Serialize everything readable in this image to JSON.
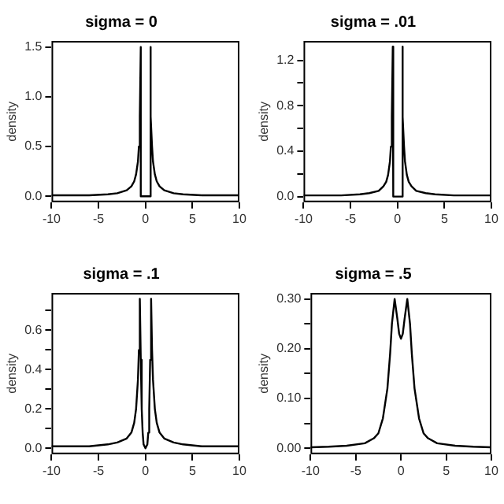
{
  "chart_data": [
    {
      "type": "line",
      "title": "sigma = 0",
      "ylabel": "density",
      "grid": false,
      "legend": false,
      "marker": "none",
      "line_style": "solid",
      "xlim": [
        -10,
        10
      ],
      "xticks": [
        -10,
        -5,
        0,
        5,
        10
      ],
      "ylim": [
        -0.06,
        1.56
      ],
      "yticks": [
        {
          "value": 0,
          "label": "0.0"
        },
        {
          "value": 0.5,
          "label": "0.5"
        },
        {
          "value": 1,
          "label": "1.0"
        },
        {
          "value": 1.5,
          "label": "1.5"
        }
      ],
      "x": [
        -10,
        -6,
        -4,
        -3,
        -2,
        -1.5,
        -1.2,
        -1,
        -0.8,
        -0.7,
        -0.6,
        -0.5,
        -0.5,
        0.5,
        0.5,
        0.6,
        0.7,
        0.8,
        1,
        1.2,
        1.5,
        2,
        3,
        4,
        6,
        10
      ],
      "series": [
        {
          "color": "#000000",
          "values": [
            0.01,
            0.01,
            0.02,
            0.03,
            0.06,
            0.1,
            0.15,
            0.22,
            0.35,
            0.5,
            0.8,
            1.5,
            0,
            0,
            1.5,
            0.8,
            0.5,
            0.35,
            0.22,
            0.15,
            0.1,
            0.06,
            0.03,
            0.02,
            0.01,
            0.01
          ]
        }
      ]
    },
    {
      "type": "line",
      "title": "sigma = .01",
      "ylabel": "density",
      "grid": false,
      "legend": false,
      "marker": "none",
      "line_style": "solid",
      "xlim": [
        -10,
        10
      ],
      "xticks": [
        -10,
        -5,
        0,
        5,
        10
      ],
      "ylim": [
        -0.05,
        1.37
      ],
      "yticks": [
        {
          "value": 0,
          "label": "0.0"
        },
        {
          "value": 0.2,
          "label": null
        },
        {
          "value": 0.4,
          "label": "0.4"
        },
        {
          "value": 0.6,
          "label": null
        },
        {
          "value": 0.8,
          "label": "0.8"
        },
        {
          "value": 1,
          "label": null
        },
        {
          "value": 1.2,
          "label": "1.2"
        }
      ],
      "x": [
        -10,
        -6,
        -4,
        -3,
        -2,
        -1.5,
        -1.2,
        -1,
        -0.8,
        -0.7,
        -0.6,
        -0.5,
        -0.45,
        0.45,
        0.5,
        0.6,
        0.7,
        0.8,
        1,
        1.2,
        1.5,
        2,
        3,
        4,
        6,
        10
      ],
      "series": [
        {
          "color": "#000000",
          "values": [
            0.01,
            0.01,
            0.02,
            0.03,
            0.05,
            0.09,
            0.13,
            0.19,
            0.31,
            0.44,
            0.7,
            1.32,
            0,
            0,
            1.32,
            0.7,
            0.44,
            0.31,
            0.19,
            0.13,
            0.09,
            0.05,
            0.03,
            0.02,
            0.01,
            0.01
          ]
        }
      ]
    },
    {
      "type": "line",
      "title": "sigma = .1",
      "ylabel": "density",
      "grid": false,
      "legend": false,
      "marker": "none",
      "line_style": "solid",
      "xlim": [
        -10,
        10
      ],
      "xticks": [
        -10,
        -5,
        0,
        5,
        10
      ],
      "ylim": [
        -0.03,
        0.79
      ],
      "yticks": [
        {
          "value": 0,
          "label": "0.0"
        },
        {
          "value": 0.1,
          "label": null
        },
        {
          "value": 0.2,
          "label": "0.2"
        },
        {
          "value": 0.3,
          "label": null
        },
        {
          "value": 0.4,
          "label": "0.4"
        },
        {
          "value": 0.5,
          "label": null
        },
        {
          "value": 0.6,
          "label": "0.6"
        },
        {
          "value": 0.7,
          "label": null
        }
      ],
      "x": [
        -10,
        -8,
        -6,
        -4,
        -3,
        -2,
        -1.5,
        -1.2,
        -1,
        -0.8,
        -0.7,
        -0.6,
        -0.5,
        -0.4,
        -0.3,
        -0.2,
        0,
        0.2,
        0.3,
        0.4,
        0.5,
        0.6,
        0.7,
        0.8,
        1,
        1.2,
        1.5,
        2,
        3,
        4,
        6,
        8,
        10
      ],
      "series": [
        {
          "color": "#000000",
          "values": [
            0.01,
            0.01,
            0.01,
            0.02,
            0.03,
            0.05,
            0.08,
            0.13,
            0.2,
            0.35,
            0.5,
            0.76,
            0.45,
            0.2,
            0.08,
            0.02,
            0,
            0.02,
            0.08,
            0.2,
            0.45,
            0.76,
            0.5,
            0.35,
            0.2,
            0.13,
            0.08,
            0.05,
            0.03,
            0.02,
            0.01,
            0.01,
            0.01
          ]
        }
      ]
    },
    {
      "type": "line",
      "title": "sigma = .5",
      "ylabel": "density",
      "grid": false,
      "legend": false,
      "marker": "none",
      "line_style": "solid",
      "xlim": [
        -10,
        10
      ],
      "xticks": [
        -10,
        -5,
        0,
        5,
        10
      ],
      "ylim": [
        -0.012,
        0.312
      ],
      "yticks": [
        {
          "value": 0,
          "label": "0.00"
        },
        {
          "value": 0.05,
          "label": null
        },
        {
          "value": 0.1,
          "label": "0.10"
        },
        {
          "value": 0.15,
          "label": null
        },
        {
          "value": 0.2,
          "label": "0.20"
        },
        {
          "value": 0.25,
          "label": null
        },
        {
          "value": 0.3,
          "label": "0.30"
        }
      ],
      "x": [
        -10,
        -8,
        -6,
        -4,
        -3,
        -2.5,
        -2,
        -1.5,
        -1.2,
        -1,
        -0.7,
        -0.4,
        -0.2,
        0,
        0.2,
        0.4,
        0.7,
        1,
        1.2,
        1.5,
        2,
        2.5,
        3,
        4,
        6,
        8,
        10
      ],
      "series": [
        {
          "color": "#000000",
          "values": [
            0.002,
            0.003,
            0.005,
            0.01,
            0.02,
            0.03,
            0.06,
            0.12,
            0.19,
            0.25,
            0.3,
            0.26,
            0.23,
            0.22,
            0.23,
            0.26,
            0.3,
            0.25,
            0.19,
            0.12,
            0.06,
            0.03,
            0.02,
            0.01,
            0.005,
            0.003,
            0.002
          ]
        }
      ]
    }
  ]
}
